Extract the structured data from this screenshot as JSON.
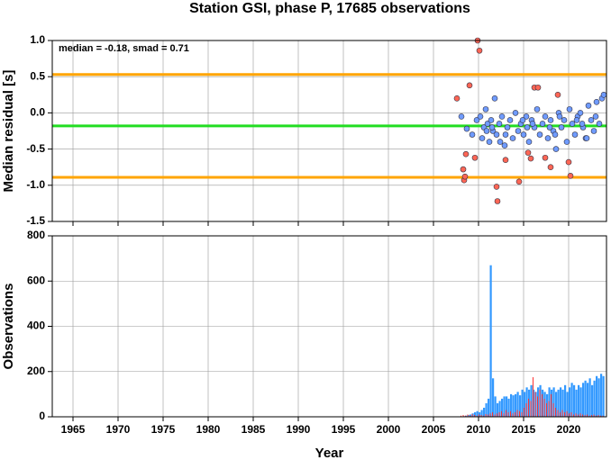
{
  "chart_data": [
    {
      "type": "scatter",
      "title": "Station GSI, phase P, 17685 observations",
      "y_label": "Median residual [s]",
      "annotation": "median = -0.18, smad = 0.71",
      "xlim": [
        1962.7,
        2024.2
      ],
      "xticks": [
        1965,
        1970,
        1975,
        1980,
        1985,
        1990,
        1995,
        2000,
        2005,
        2010,
        2015,
        2020
      ],
      "ylim": [
        -1.5,
        1.0
      ],
      "yticks": [
        {
          "value": 1.0,
          "label": "1.0"
        },
        0.5,
        {
          "value": 0,
          "label": "0.0"
        },
        -0.5,
        {
          "value": -1,
          "label": "-1.0"
        },
        -1.5
      ],
      "grid": true,
      "hlines": [
        {
          "value": 0.53,
          "color": "#ffa500"
        },
        {
          "value": -0.18,
          "color": "#22dd22"
        },
        {
          "value": -0.89,
          "color": "#ffa500"
        }
      ],
      "series": [
        {
          "color": "#6f9bff",
          "x": [
            2008.1,
            2008.7,
            2009.3,
            2009.8,
            2010.2,
            2010.4,
            2010.6,
            2010.8,
            2011.0,
            2011.2,
            2011.4,
            2011.6,
            2011.8,
            2012.0,
            2012.3,
            2012.6,
            2012.9,
            2013.2,
            2013.5,
            2013.8,
            2014.1,
            2014.4,
            2014.7,
            2015.0,
            2015.3,
            2015.6,
            2015.9,
            2016.2,
            2016.5,
            2016.8,
            2017.1,
            2017.4,
            2017.7,
            2018.0,
            2018.3,
            2018.6,
            2018.9,
            2019.2,
            2019.5,
            2019.8,
            2020.1,
            2020.4,
            2020.7,
            2021.0,
            2021.3,
            2021.6,
            2021.9,
            2022.2,
            2022.5,
            2022.8,
            2023.1,
            2023.4,
            2023.7,
            2023.9,
            2011.5,
            2013.0,
            2014.9,
            2016.0,
            2017.9,
            2019.0,
            2020.9,
            2022.0,
            2023.0,
            2010.9,
            2012.4,
            2015.4,
            2018.5,
            2021.5
          ],
          "values": [
            -0.05,
            -0.22,
            -0.3,
            -0.1,
            -0.05,
            -0.35,
            -0.2,
            0.05,
            -0.15,
            -0.4,
            -0.1,
            -0.25,
            0.2,
            -0.3,
            -0.15,
            -0.05,
            -0.45,
            -0.2,
            -0.1,
            -0.35,
            0.0,
            -0.25,
            -0.15,
            -0.3,
            -0.05,
            -0.4,
            -0.1,
            -0.2,
            0.05,
            -0.3,
            -0.15,
            -0.05,
            -0.35,
            -0.1,
            -0.25,
            -0.5,
            0.0,
            -0.2,
            -0.1,
            -0.4,
            0.05,
            -0.15,
            -0.3,
            -0.05,
            0.0,
            -0.2,
            -0.35,
            0.1,
            -0.1,
            -0.25,
            0.15,
            -0.15,
            0.2,
            0.25,
            -0.2,
            -0.3,
            -0.1,
            -0.15,
            -0.2,
            -0.05,
            -0.1,
            -0.35,
            -0.05,
            -0.25,
            -0.4,
            -0.2,
            -0.3,
            -0.15
          ]
        },
        {
          "color": "#ff6655",
          "x": [
            2007.6,
            2008.3,
            2008.4,
            2008.5,
            2008.6,
            2009.0,
            2009.6,
            2009.9,
            2010.1,
            2012.0,
            2012.1,
            2013.0,
            2014.5,
            2015.5,
            2015.8,
            2016.2,
            2016.6,
            2017.4,
            2018.0,
            2018.8,
            2020.0,
            2020.2
          ],
          "values": [
            0.2,
            -0.78,
            -0.93,
            -0.88,
            -0.57,
            0.38,
            -0.62,
            1.0,
            0.86,
            -1.02,
            -1.22,
            -0.65,
            -0.95,
            -0.55,
            -0.63,
            0.35,
            0.35,
            -0.62,
            -0.75,
            0.25,
            -0.68,
            -0.87
          ]
        }
      ]
    },
    {
      "type": "histogram",
      "x_label": "Year",
      "y_label": "Observations",
      "xlim": [
        1962.7,
        2024.2
      ],
      "xticks": [
        1965,
        1970,
        1975,
        1980,
        1985,
        1990,
        1995,
        2000,
        2005,
        2010,
        2015,
        2020
      ],
      "ylim": [
        0,
        800
      ],
      "yticks": [
        0,
        200,
        400,
        600,
        800
      ],
      "grid": true,
      "bins": [
        2008,
        2008.25,
        2008.5,
        2008.75,
        2009,
        2009.25,
        2009.5,
        2009.75,
        2010,
        2010.25,
        2010.5,
        2010.75,
        2011,
        2011.25,
        2011.5,
        2011.75,
        2012,
        2012.25,
        2012.5,
        2012.75,
        2013,
        2013.25,
        2013.5,
        2013.75,
        2014,
        2014.25,
        2014.5,
        2014.75,
        2015,
        2015.25,
        2015.5,
        2015.75,
        2016,
        2016.25,
        2016.5,
        2016.75,
        2017,
        2017.25,
        2017.5,
        2017.75,
        2018,
        2018.25,
        2018.5,
        2018.75,
        2019,
        2019.25,
        2019.5,
        2019.75,
        2020,
        2020.25,
        2020.5,
        2020.75,
        2021,
        2021.25,
        2021.5,
        2021.75,
        2022,
        2022.25,
        2022.5,
        2022.75,
        2023,
        2023.25,
        2023.5,
        2023.75,
        2024
      ],
      "series": [
        {
          "color": "#3399ff",
          "values": [
            2,
            3,
            5,
            8,
            10,
            15,
            20,
            25,
            20,
            30,
            40,
            60,
            80,
            670,
            170,
            90,
            60,
            70,
            80,
            90,
            90,
            80,
            100,
            95,
            100,
            110,
            95,
            120,
            110,
            130,
            120,
            140,
            120,
            110,
            130,
            140,
            120,
            110,
            100,
            130,
            120,
            130,
            110,
            120,
            130,
            120,
            140,
            110,
            130,
            150,
            140,
            120,
            140,
            130,
            150,
            160,
            150,
            170,
            140,
            160,
            180,
            170,
            190,
            180
          ]
        },
        {
          "color": "#ff3333",
          "values": [
            5,
            8,
            5,
            10,
            5,
            12,
            8,
            5,
            10,
            8,
            5,
            12,
            10,
            15,
            20,
            10,
            15,
            20,
            25,
            15,
            30,
            20,
            25,
            15,
            20,
            30,
            25,
            20,
            40,
            60,
            80,
            70,
            175,
            110,
            90,
            120,
            100,
            80,
            60,
            70,
            100,
            60,
            40,
            30,
            20,
            30,
            20,
            25,
            15,
            20,
            10,
            15,
            10,
            15,
            10,
            8,
            10,
            5,
            8,
            10,
            5,
            8,
            5,
            5
          ]
        }
      ]
    }
  ]
}
